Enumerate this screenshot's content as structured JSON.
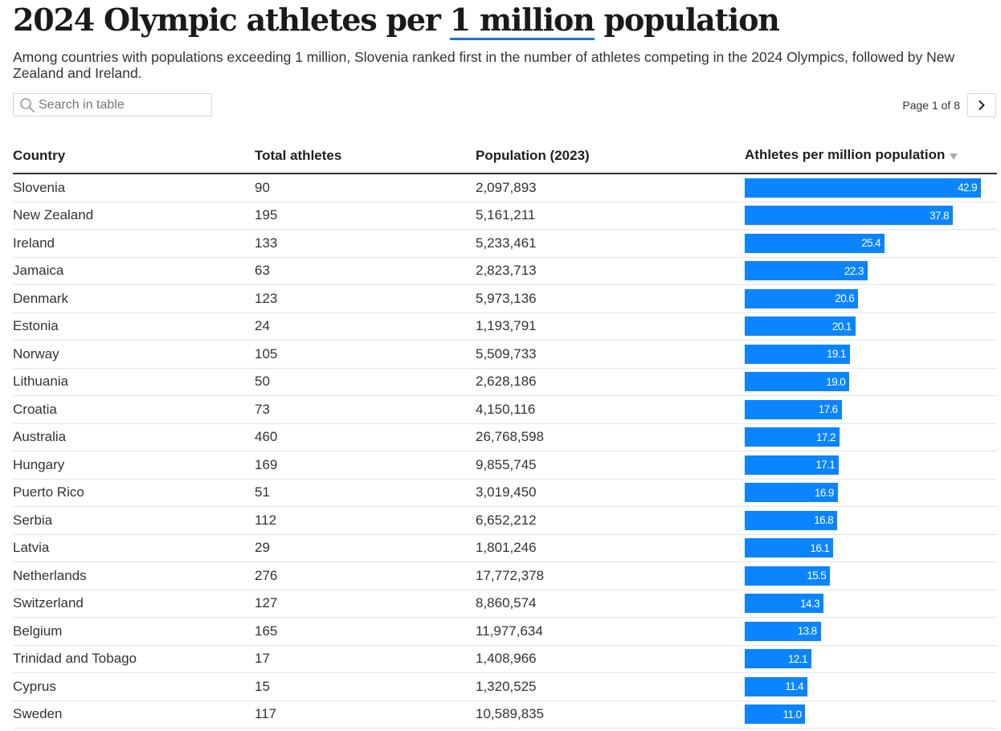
{
  "title": {
    "before": "2024 Olympic athletes per ",
    "highlight": "1 million",
    "after": " population"
  },
  "subtitle": "Among countries with populations exceeding 1 million, Slovenia ranked first in the number of athletes competing in the 2024 Olympics, followed by New Zealand and Ireland.",
  "search": {
    "placeholder": "Search in table"
  },
  "pagination": {
    "label": "Page 1 of 8"
  },
  "colors": {
    "bar": "#0b84ff",
    "title_underline": "#1a73e8"
  },
  "chart_data": {
    "type": "table",
    "title": "2024 Olympic athletes per 1 million population",
    "columns": [
      "Country",
      "Total athletes",
      "Population (2023)",
      "Athletes per million population"
    ],
    "sorted_by": "Athletes per million population",
    "sort_order": "descending",
    "bar_max": 45,
    "rows": [
      {
        "country": "Slovenia",
        "athletes": "90",
        "population": "2,097,893",
        "per_million": 42.9,
        "per_million_label": "42.9"
      },
      {
        "country": "New Zealand",
        "athletes": "195",
        "population": "5,161,211",
        "per_million": 37.8,
        "per_million_label": "37.8"
      },
      {
        "country": "Ireland",
        "athletes": "133",
        "population": "5,233,461",
        "per_million": 25.4,
        "per_million_label": "25.4"
      },
      {
        "country": "Jamaica",
        "athletes": "63",
        "population": "2,823,713",
        "per_million": 22.3,
        "per_million_label": "22.3"
      },
      {
        "country": "Denmark",
        "athletes": "123",
        "population": "5,973,136",
        "per_million": 20.6,
        "per_million_label": "20.6"
      },
      {
        "country": "Estonia",
        "athletes": "24",
        "population": "1,193,791",
        "per_million": 20.1,
        "per_million_label": "20.1"
      },
      {
        "country": "Norway",
        "athletes": "105",
        "population": "5,509,733",
        "per_million": 19.1,
        "per_million_label": "19.1"
      },
      {
        "country": "Lithuania",
        "athletes": "50",
        "population": "2,628,186",
        "per_million": 19.0,
        "per_million_label": "19.0"
      },
      {
        "country": "Croatia",
        "athletes": "73",
        "population": "4,150,116",
        "per_million": 17.6,
        "per_million_label": "17.6"
      },
      {
        "country": "Australia",
        "athletes": "460",
        "population": "26,768,598",
        "per_million": 17.2,
        "per_million_label": "17.2"
      },
      {
        "country": "Hungary",
        "athletes": "169",
        "population": "9,855,745",
        "per_million": 17.1,
        "per_million_label": "17.1"
      },
      {
        "country": "Puerto Rico",
        "athletes": "51",
        "population": "3,019,450",
        "per_million": 16.9,
        "per_million_label": "16.9"
      },
      {
        "country": "Serbia",
        "athletes": "112",
        "population": "6,652,212",
        "per_million": 16.8,
        "per_million_label": "16.8"
      },
      {
        "country": "Latvia",
        "athletes": "29",
        "population": "1,801,246",
        "per_million": 16.1,
        "per_million_label": "16.1"
      },
      {
        "country": "Netherlands",
        "athletes": "276",
        "population": "17,772,378",
        "per_million": 15.5,
        "per_million_label": "15.5"
      },
      {
        "country": "Switzerland",
        "athletes": "127",
        "population": "8,860,574",
        "per_million": 14.3,
        "per_million_label": "14.3"
      },
      {
        "country": "Belgium",
        "athletes": "165",
        "population": "11,977,634",
        "per_million": 13.8,
        "per_million_label": "13.8"
      },
      {
        "country": "Trinidad and Tobago",
        "athletes": "17",
        "population": "1,408,966",
        "per_million": 12.1,
        "per_million_label": "12.1"
      },
      {
        "country": "Cyprus",
        "athletes": "15",
        "population": "1,320,525",
        "per_million": 11.4,
        "per_million_label": "11.4"
      },
      {
        "country": "Sweden",
        "athletes": "117",
        "population": "10,589,835",
        "per_million": 11.0,
        "per_million_label": "11.0"
      }
    ]
  }
}
